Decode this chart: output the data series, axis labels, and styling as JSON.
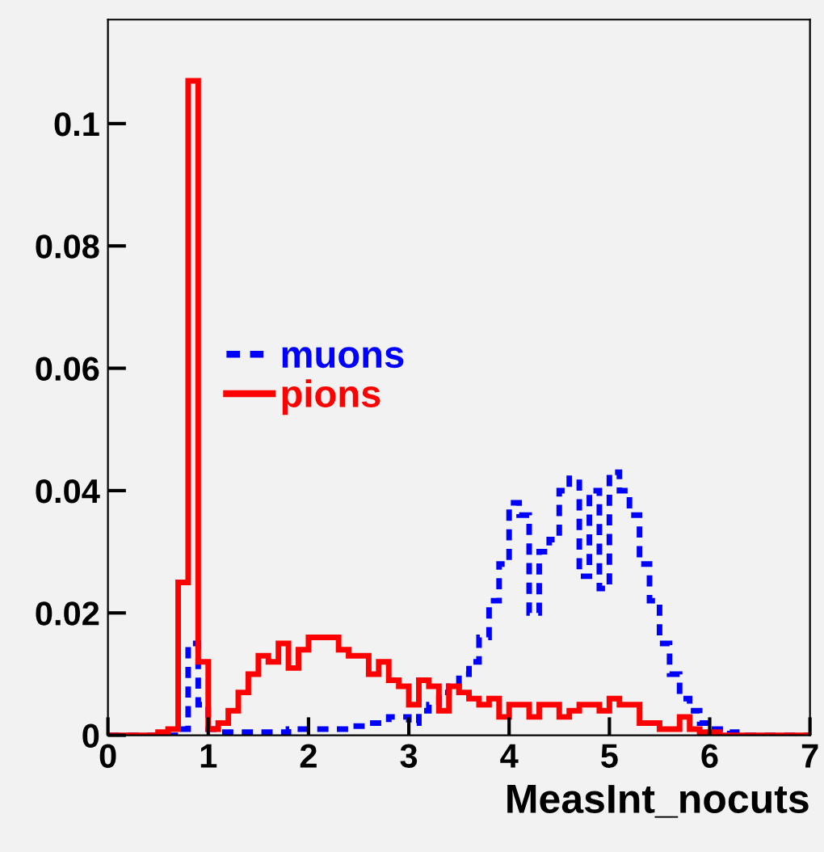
{
  "chart_data": {
    "type": "histogram",
    "xlabel": "MeasInt_nocuts",
    "bins": [
      0,
      0.1,
      0.2,
      0.3,
      0.4,
      0.5,
      0.6,
      0.7,
      0.8,
      0.9,
      1,
      1.1,
      1.2,
      1.3,
      1.4,
      1.5,
      1.6,
      1.7,
      1.8,
      1.9,
      2,
      2.1,
      2.2,
      2.3,
      2.4,
      2.5,
      2.6,
      2.7,
      2.8,
      2.9,
      3,
      3.1,
      3.2,
      3.3,
      3.4,
      3.5,
      3.6,
      3.7,
      3.8,
      3.9,
      4,
      4.1,
      4.2,
      4.3,
      4.4,
      4.5,
      4.6,
      4.7,
      4.8,
      4.9,
      5,
      5.1,
      5.2,
      5.3,
      5.4,
      5.5,
      5.6,
      5.7,
      5.8,
      5.9,
      6,
      6.1,
      6.2,
      6.3,
      6.4,
      6.5,
      6.6,
      6.7,
      6.8,
      6.9,
      7
    ],
    "series": [
      {
        "name": "muons",
        "color": "#0000ff",
        "line_style": "dashed",
        "values": [
          0,
          0,
          0,
          0,
          0,
          0,
          0,
          0.001,
          0.015,
          0.005,
          0.001,
          0.0005,
          0.0005,
          0.0005,
          0.0005,
          0.0005,
          0.0005,
          0.0005,
          0.001,
          0.001,
          0.001,
          0.001,
          0.001,
          0.001,
          0.0015,
          0.0015,
          0.002,
          0.002,
          0.003,
          0.003,
          0.002,
          0.004,
          0.005,
          0.007,
          0.008,
          0.01,
          0.012,
          0.016,
          0.022,
          0.028,
          0.038,
          0.036,
          0.02,
          0.03,
          0.032,
          0.04,
          0.042,
          0.026,
          0.04,
          0.024,
          0.043,
          0.04,
          0.036,
          0.028,
          0.022,
          0.015,
          0.01,
          0.006,
          0.004,
          0.002,
          0.001,
          0.001,
          0.0005,
          0,
          0,
          0,
          0,
          0,
          0,
          0
        ]
      },
      {
        "name": "pions",
        "color": "#ff0000",
        "line_style": "solid",
        "values": [
          0,
          0,
          0,
          0,
          0,
          0.0005,
          0.001,
          0.025,
          0.107,
          0.012,
          0.001,
          0.002,
          0.004,
          0.007,
          0.01,
          0.013,
          0.012,
          0.015,
          0.011,
          0.014,
          0.016,
          0.016,
          0.016,
          0.014,
          0.013,
          0.013,
          0.01,
          0.012,
          0.009,
          0.008,
          0.005,
          0.009,
          0.008,
          0.004,
          0.008,
          0.007,
          0.006,
          0.005,
          0.006,
          0.003,
          0.005,
          0.005,
          0.003,
          0.005,
          0.005,
          0.003,
          0.004,
          0.005,
          0.005,
          0.004,
          0.006,
          0.005,
          0.005,
          0.002,
          0.002,
          0.001,
          0.001,
          0.003,
          0.001,
          0.0005,
          0.0005,
          0,
          0,
          0,
          0,
          0,
          0,
          0,
          0,
          0
        ]
      }
    ],
    "xlim": [
      0,
      7
    ],
    "xticks": [
      0,
      1,
      2,
      3,
      4,
      5,
      6,
      7
    ],
    "ylim": [
      0,
      0.117
    ],
    "yticks": [
      0,
      0.02,
      0.04,
      0.06,
      0.08,
      0.1
    ],
    "legend": "left",
    "grid": false
  }
}
